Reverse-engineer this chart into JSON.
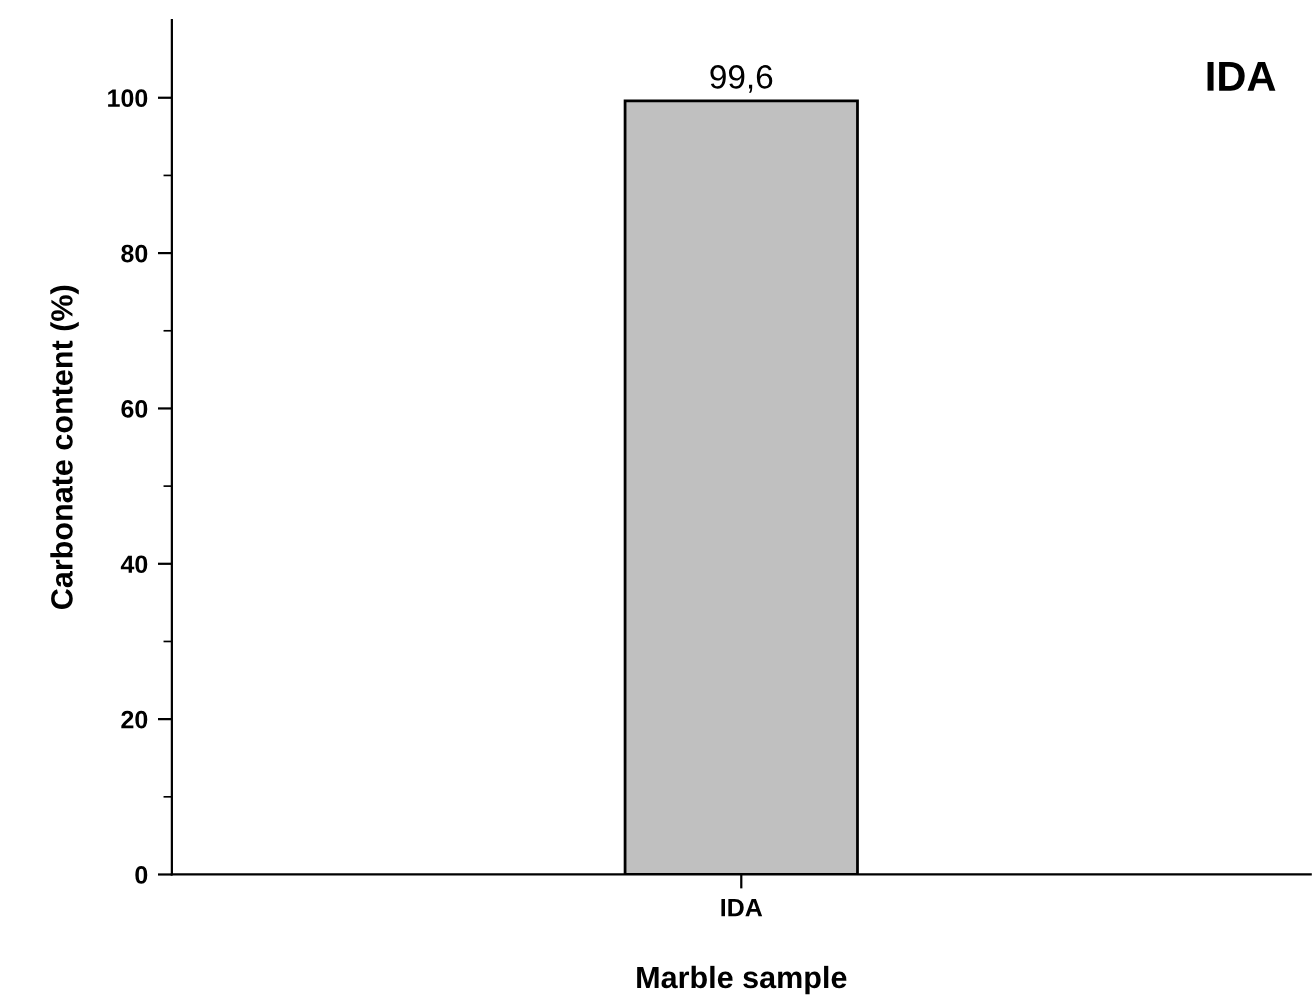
{
  "chart_data": {
    "type": "bar",
    "xlabel": "Marble sample",
    "ylabel": "Carbonate content (%)",
    "categories": [
      "IDA"
    ],
    "values": [
      99.6
    ],
    "value_labels": [
      "99,6"
    ],
    "color": "#c0c0c0",
    "ylim": [
      0,
      110
    ],
    "yticks": [
      0,
      20,
      40,
      60,
      80,
      100
    ],
    "grid": false,
    "legend": false,
    "annotations": [
      "IDA"
    ]
  }
}
